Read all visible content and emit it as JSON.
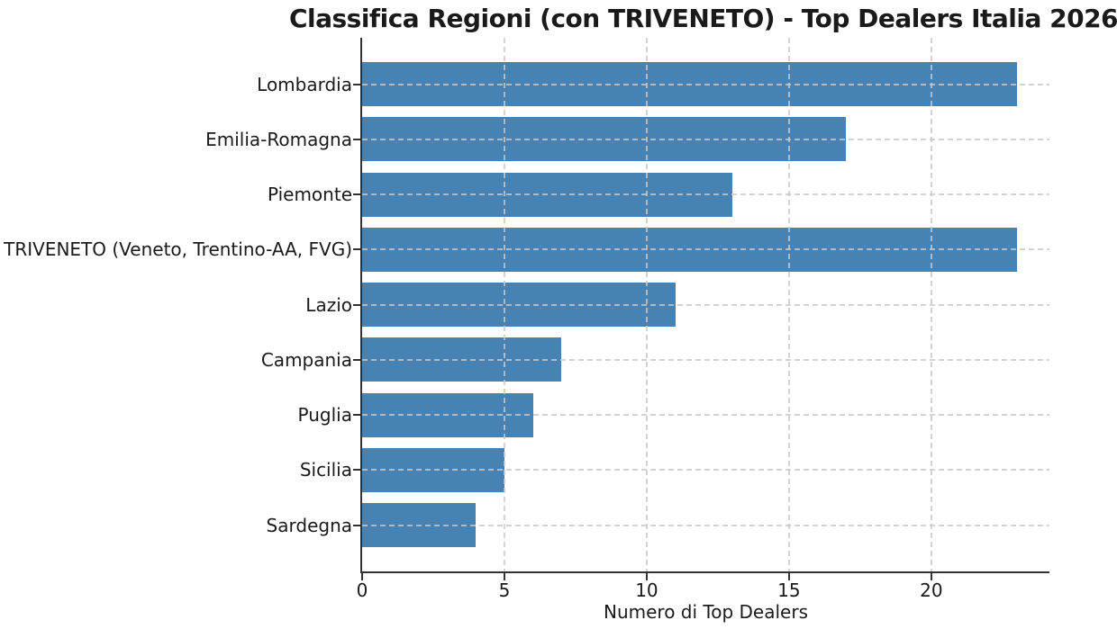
{
  "chart_data": {
    "type": "bar",
    "orientation": "horizontal",
    "title": "Classifica Regioni (con TRIVENETO) - Top Dealers Italia 2026",
    "xlabel": "Numero di Top Dealers",
    "ylabel": "",
    "categories": [
      "Lombardia",
      "Emilia-Romagna",
      "Piemonte",
      "TRIVENETO (Veneto, Trentino-AA, FVG)",
      "Lazio",
      "Campania",
      "Puglia",
      "Sicilia",
      "Sardegna"
    ],
    "values": [
      23,
      17,
      13,
      23,
      11,
      7,
      6,
      5,
      4
    ],
    "xticks": [
      0,
      5,
      10,
      15,
      20
    ],
    "xlim": [
      0,
      24.15
    ],
    "grid": true,
    "grid_style": "dashed",
    "legend": false,
    "bar_color": "#4682b4",
    "grid_color": "#c8c8c8",
    "axis_color": "#333333",
    "text_color": "#1a1a1a",
    "background_color": "#ffffff"
  }
}
